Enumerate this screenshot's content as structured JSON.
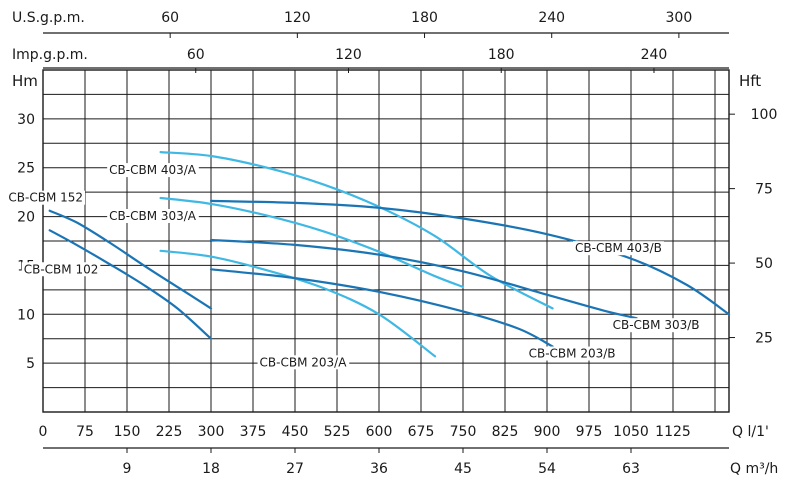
{
  "chart_data": {
    "type": "line",
    "title": "",
    "x_axis_bottom": {
      "label": "Q l/1'",
      "ticks": [
        "0",
        "75",
        "150",
        "225",
        "300",
        "375",
        "450",
        "525",
        "600",
        "675",
        "750",
        "825",
        "900",
        "975",
        "1050",
        "1125"
      ],
      "range": [
        0,
        1225
      ]
    },
    "x_axis_m3h": {
      "label": "Q m³/h",
      "ticks": [
        "9",
        "18",
        "27",
        "36",
        "45",
        "54",
        "63"
      ],
      "values": [
        9,
        18,
        27,
        36,
        45,
        54,
        63
      ]
    },
    "x_axis_usgpm": {
      "label": "U.S.g.p.m.",
      "ticks": [
        "60",
        "120",
        "180",
        "240",
        "300"
      ],
      "values": [
        60,
        120,
        180,
        240,
        300
      ]
    },
    "x_axis_impgpm": {
      "label": "Imp.g.p.m.",
      "ticks": [
        "60",
        "120",
        "180",
        "240"
      ],
      "values": [
        60,
        120,
        180,
        240
      ]
    },
    "y_axis_left": {
      "label": "Hm",
      "ticks": [
        "5",
        "10",
        "15",
        "20",
        "25",
        "30"
      ],
      "values": [
        5,
        10,
        15,
        20,
        25,
        30
      ],
      "range": [
        0,
        35
      ]
    },
    "y_axis_right": {
      "label": "Hft",
      "ticks": [
        "25",
        "50",
        "75",
        "100"
      ],
      "values": [
        25,
        50,
        75,
        100
      ]
    },
    "series": [
      {
        "name": "CB-CBM 152",
        "color": "#1b75b5",
        "label_pos": "upper-left",
        "x": [
          12,
          60,
          120,
          180,
          240,
          300
        ],
        "y": [
          20.6,
          19.4,
          17.3,
          15.0,
          12.8,
          10.6
        ]
      },
      {
        "name": "CB-CBM 102",
        "color": "#1b75b5",
        "label_pos": "left",
        "x": [
          12,
          60,
          120,
          180,
          240,
          300
        ],
        "y": [
          18.6,
          17.1,
          15.1,
          13.0,
          10.6,
          7.5
        ]
      },
      {
        "name": "CB-CBM 403/A",
        "color": "#3fb8e4",
        "label_pos": "above",
        "x": [
          210,
          300,
          400,
          500,
          600,
          700,
          800,
          910
        ],
        "y": [
          26.6,
          26.2,
          25.0,
          23.3,
          21.0,
          18.0,
          13.9,
          10.6
        ]
      },
      {
        "name": "CB-CBM 303/A",
        "color": "#3fb8e4",
        "label_pos": "above",
        "x": [
          210,
          300,
          400,
          500,
          600,
          700,
          750
        ],
        "y": [
          21.9,
          21.3,
          20.1,
          18.5,
          16.4,
          13.9,
          12.8
        ]
      },
      {
        "name": "CB-CBM 203/A",
        "color": "#3fb8e4",
        "label_pos": "below",
        "x": [
          210,
          300,
          400,
          500,
          600,
          700
        ],
        "y": [
          16.5,
          15.9,
          14.5,
          12.7,
          10.0,
          5.7
        ]
      },
      {
        "name": "CB-CBM 403/B",
        "color": "#1b75b5",
        "label_pos": "right",
        "x": [
          300,
          450,
          600,
          750,
          900,
          1050,
          1150,
          1225
        ],
        "y": [
          21.6,
          21.4,
          20.9,
          19.8,
          18.2,
          15.7,
          13.0,
          10.0
        ]
      },
      {
        "name": "CB-CBM 303/B",
        "color": "#1b75b5",
        "label_pos": "below-right",
        "x": [
          300,
          450,
          600,
          750,
          900,
          1000,
          1060
        ],
        "y": [
          17.6,
          17.1,
          16.1,
          14.4,
          12.0,
          10.4,
          9.6
        ]
      },
      {
        "name": "CB-CBM 203/B",
        "color": "#1b75b5",
        "label_pos": "below-right",
        "x": [
          300,
          450,
          600,
          750,
          850,
          910
        ],
        "y": [
          14.6,
          13.7,
          12.3,
          10.3,
          8.5,
          6.7
        ]
      }
    ]
  }
}
